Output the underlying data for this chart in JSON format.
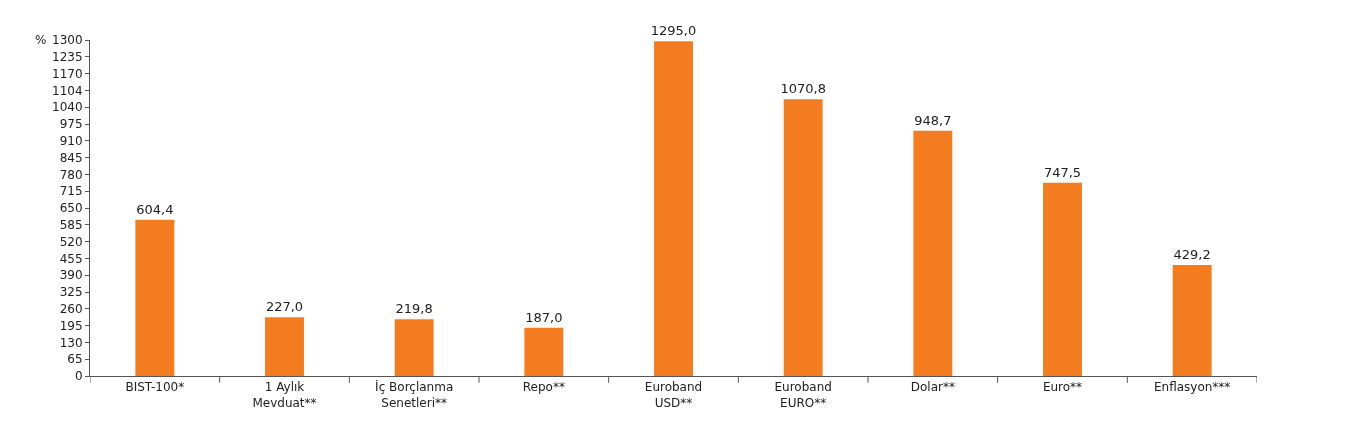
{
  "chart_data": {
    "type": "bar",
    "ylabel": "%",
    "categories": [
      "BIST-100*",
      "1 Aylık\nMevduat**",
      "İç Borçlanma\nSenetleri**",
      "Repo**",
      "Euroband\nUSD**",
      "Euroband\nEURO**",
      "Dolar**",
      "Euro**",
      "Enflasyon***"
    ],
    "values": [
      604.4,
      227.0,
      219.8,
      187.0,
      1295.0,
      1070.8,
      948.7,
      747.5,
      429.2
    ],
    "value_labels": [
      "604,4",
      "227,0",
      "219,8",
      "187,0",
      "1295,0",
      "1070,8",
      "948,7",
      "747,5",
      "429,2"
    ],
    "color": "#f47c20",
    "ylim": [
      0,
      1300
    ],
    "yticks": [
      0,
      65,
      130,
      195,
      260,
      325,
      390,
      455,
      520,
      585,
      650,
      715,
      780,
      845,
      910,
      975,
      1040,
      1104,
      1170,
      1235,
      1300
    ],
    "grid": false
  }
}
